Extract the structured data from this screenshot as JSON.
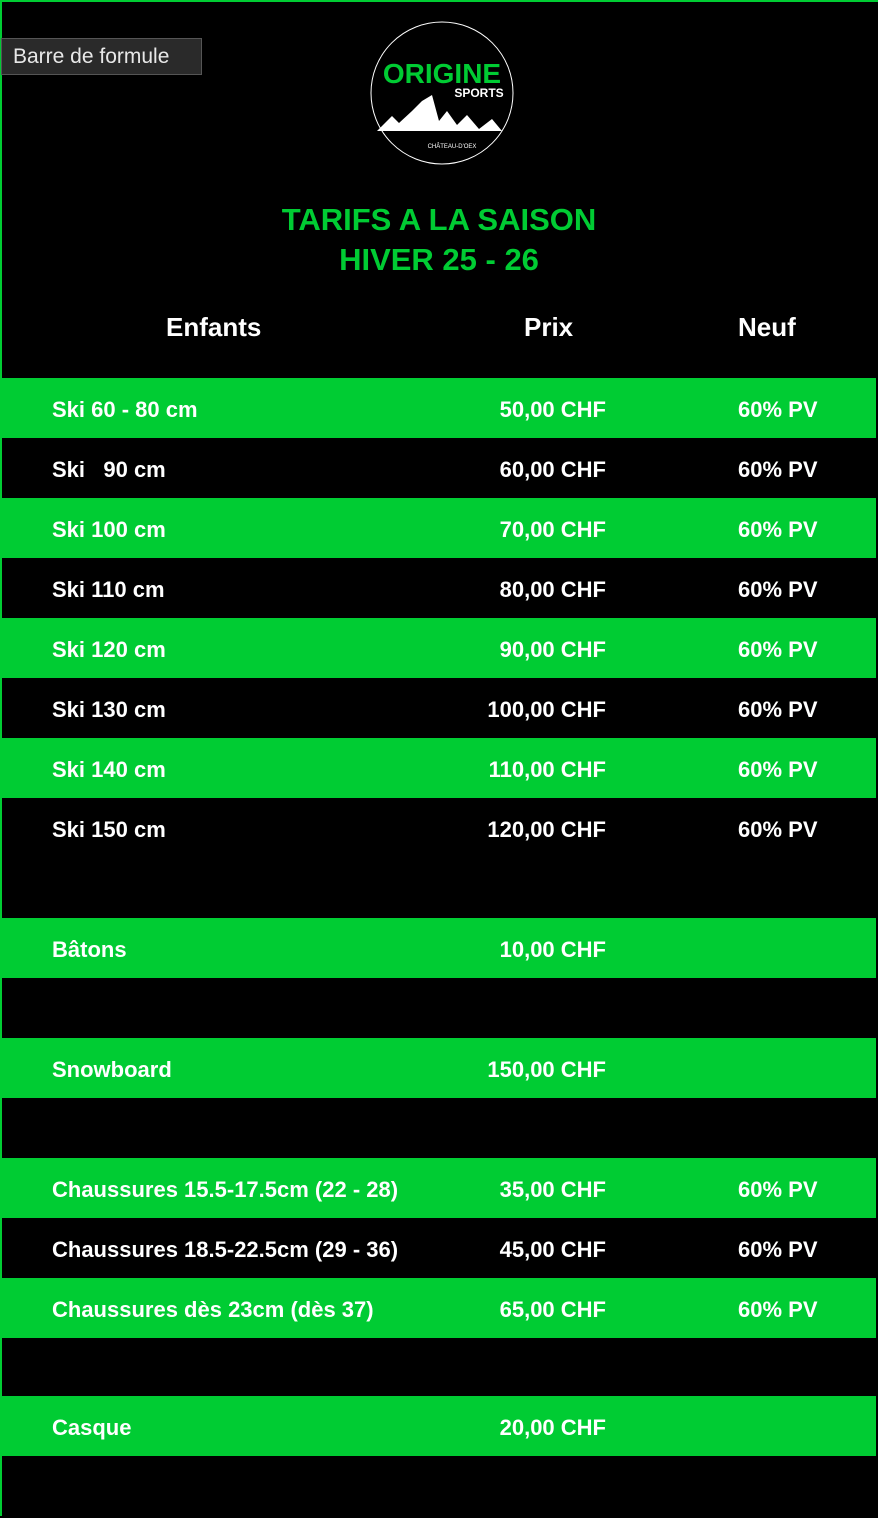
{
  "tooltip": "Barre de formule",
  "logo": {
    "name": "ORIGINE",
    "sub": "SPORTS",
    "place": "CHÂTEAU-D'OEX"
  },
  "title": {
    "line1": "TARIFS A LA SAISON",
    "line2": "HIVER 25 - 26"
  },
  "headers": {
    "item": "Enfants",
    "price": "Prix",
    "new": "Neuf"
  },
  "colors": {
    "green": "#00cc33",
    "black": "#000000"
  },
  "rows": [
    {
      "label": "Ski 60 - 80 cm",
      "price": "50,00 CHF",
      "new": "60% PV"
    },
    {
      "label": "Ski   90 cm",
      "price": "60,00 CHF",
      "new": "60% PV"
    },
    {
      "label": "Ski 100 cm",
      "price": "70,00 CHF",
      "new": "60% PV"
    },
    {
      "label": "Ski 110 cm",
      "price": "80,00 CHF",
      "new": "60% PV"
    },
    {
      "label": "Ski 120 cm",
      "price": "90,00 CHF",
      "new": "60% PV"
    },
    {
      "label": "Ski 130 cm",
      "price": "100,00 CHF",
      "new": "60% PV"
    },
    {
      "label": "Ski 140 cm",
      "price": "110,00 CHF",
      "new": "60% PV"
    },
    {
      "label": "Ski 150 cm",
      "price": "120,00 CHF",
      "new": "60% PV"
    },
    {
      "label": "Bâtons",
      "price": "10,00 CHF",
      "new": ""
    },
    {
      "label": "Snowboard",
      "price": "150,00 CHF",
      "new": ""
    },
    {
      "label": "Chaussures 15.5-17.5cm (22 - 28)",
      "price": "35,00 CHF",
      "new": "60% PV"
    },
    {
      "label": "Chaussures 18.5-22.5cm (29 - 36)",
      "price": "45,00 CHF",
      "new": "60% PV"
    },
    {
      "label": "Chaussures dès 23cm (dès 37)",
      "price": "65,00 CHF",
      "new": "60% PV"
    },
    {
      "label": "Casque",
      "price": "20,00 CHF",
      "new": ""
    }
  ]
}
